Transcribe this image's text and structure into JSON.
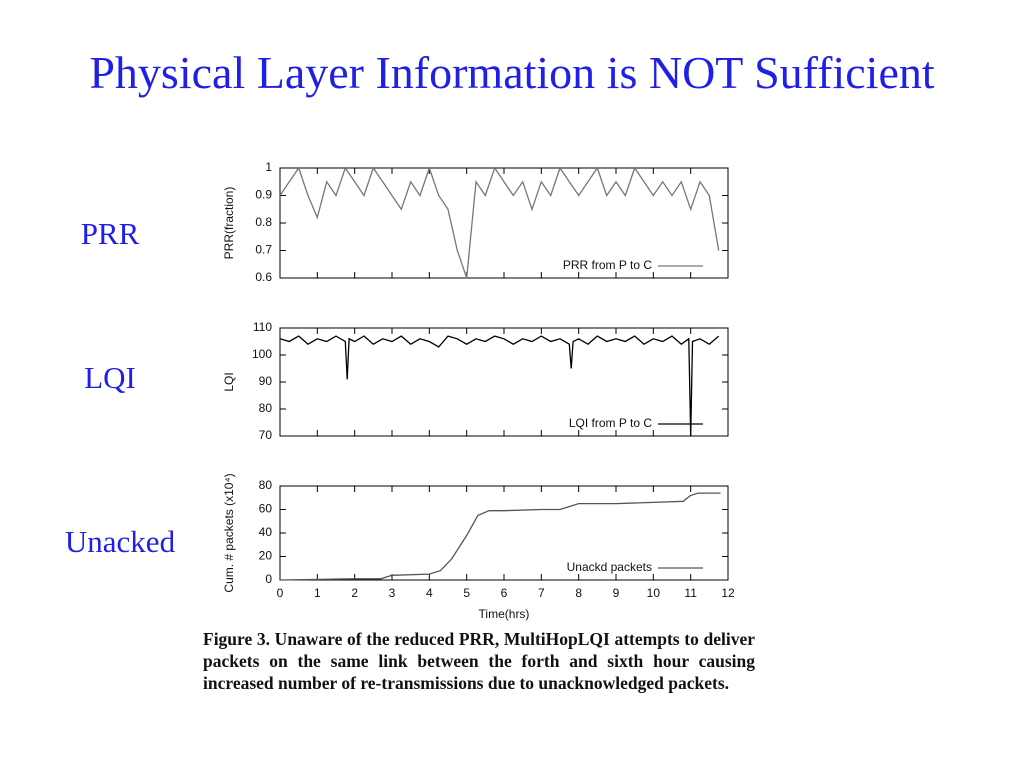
{
  "slide": {
    "title": "Physical Layer Information is NOT Sufficient",
    "labels": [
      "PRR",
      "LQI",
      "Unacked"
    ]
  },
  "caption": "Figure 3. Unaware of the reduced PRR, MultiHopLQI attempts to deliver packets on the same link between the forth and sixth hour causing increased number of re-transmissions due to unacknowledged packets.",
  "chart_data": [
    {
      "type": "line",
      "ylabel": "PRR(fraction)",
      "xlim": [
        0,
        12
      ],
      "xticks": [
        0,
        1,
        2,
        3,
        4,
        5,
        6,
        7,
        8,
        9,
        10,
        11,
        12
      ],
      "show_xtick_labels": false,
      "ylim": [
        0.6,
        1
      ],
      "yticks": [
        0.6,
        0.7,
        0.8,
        0.9,
        1
      ],
      "legend": "lower right",
      "x": [
        0,
        0.25,
        0.5,
        0.75,
        1,
        1.25,
        1.5,
        1.75,
        2,
        2.25,
        2.5,
        2.75,
        3,
        3.25,
        3.5,
        3.75,
        4,
        4.25,
        4.5,
        4.75,
        5,
        5.25,
        5.5,
        5.75,
        6,
        6.25,
        6.5,
        6.75,
        7,
        7.25,
        7.5,
        7.75,
        8,
        8.25,
        8.5,
        8.75,
        9,
        9.25,
        9.5,
        9.75,
        10,
        10.25,
        10.5,
        10.75,
        11,
        11.25,
        11.5,
        11.75
      ],
      "series": [
        {
          "name": "PRR from P to C",
          "color": "#777777",
          "values": [
            0.9,
            0.95,
            1,
            0.9,
            0.82,
            0.95,
            0.9,
            1,
            0.95,
            0.9,
            1,
            0.95,
            0.9,
            0.85,
            0.95,
            0.9,
            1,
            0.9,
            0.85,
            0.7,
            0.6,
            0.95,
            0.9,
            1,
            0.95,
            0.9,
            0.95,
            0.85,
            0.95,
            0.9,
            1,
            0.95,
            0.9,
            0.95,
            1,
            0.9,
            0.95,
            0.9,
            1,
            0.95,
            0.9,
            0.95,
            0.9,
            0.95,
            0.85,
            0.95,
            0.9,
            0.7
          ]
        }
      ]
    },
    {
      "type": "line",
      "ylabel": "LQI",
      "xlim": [
        0,
        12
      ],
      "xticks": [
        0,
        1,
        2,
        3,
        4,
        5,
        6,
        7,
        8,
        9,
        10,
        11,
        12
      ],
      "show_xtick_labels": false,
      "ylim": [
        70,
        110
      ],
      "yticks": [
        70,
        80,
        90,
        100,
        110
      ],
      "legend": "lower right",
      "x": [
        0,
        0.25,
        0.5,
        0.75,
        1,
        1.25,
        1.5,
        1.75,
        1.8,
        1.85,
        2,
        2.25,
        2.5,
        2.75,
        3,
        3.25,
        3.5,
        3.75,
        4,
        4.25,
        4.5,
        4.75,
        5,
        5.25,
        5.5,
        5.75,
        6,
        6.25,
        6.5,
        6.75,
        7,
        7.25,
        7.5,
        7.75,
        7.8,
        7.85,
        8,
        8.25,
        8.5,
        8.75,
        9,
        9.25,
        9.5,
        9.75,
        10,
        10.25,
        10.5,
        10.75,
        10.95,
        11,
        11.05,
        11.25,
        11.5,
        11.75
      ],
      "series": [
        {
          "name": "LQI from P to C",
          "color": "#000000",
          "values": [
            106,
            105,
            107,
            104,
            106,
            105,
            107,
            105,
            91,
            106,
            105,
            107,
            104,
            106,
            105,
            107,
            104,
            106,
            105,
            103,
            107,
            106,
            104,
            106,
            105,
            107,
            106,
            104,
            106,
            105,
            107,
            105,
            106,
            104,
            95,
            105,
            106,
            104,
            107,
            105,
            106,
            105,
            107,
            104,
            106,
            105,
            107,
            104,
            106,
            70,
            105,
            106,
            104,
            107
          ]
        }
      ]
    },
    {
      "type": "line",
      "ylabel": "Cum. # packets (x10⁴)",
      "xlabel": "Time(hrs)",
      "xlim": [
        0,
        12
      ],
      "xticks": [
        0,
        1,
        2,
        3,
        4,
        5,
        6,
        7,
        8,
        9,
        10,
        11,
        12
      ],
      "show_xtick_labels": true,
      "ylim": [
        0,
        80
      ],
      "yticks": [
        0,
        20,
        40,
        60,
        80
      ],
      "legend": "lower right",
      "x": [
        0,
        1,
        2,
        2.7,
        3,
        4,
        4.3,
        4.6,
        5,
        5.3,
        5.6,
        6,
        7,
        7.5,
        8,
        9,
        10,
        10.8,
        11,
        11.2,
        11.8
      ],
      "series": [
        {
          "name": "Unackd packets",
          "color": "#555555",
          "values": [
            0,
            0.5,
            1,
            1,
            4,
            5,
            8,
            18,
            38,
            55,
            59,
            59,
            60,
            60,
            65,
            65,
            66,
            67,
            72,
            74,
            74
          ]
        }
      ]
    }
  ]
}
